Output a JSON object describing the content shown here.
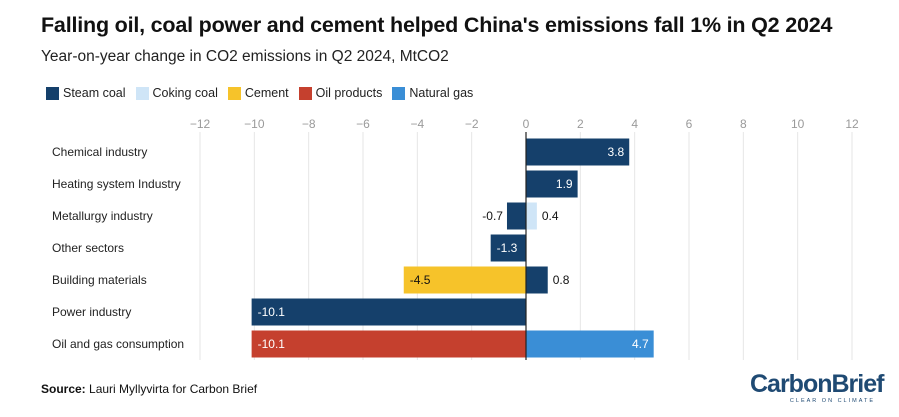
{
  "header": {
    "title": "Falling oil, coal power and cement helped China's emissions fall 1% in Q2 2024",
    "subtitle": "Year-on-year change in CO2 emissions in Q2 2024, MtCO2"
  },
  "footer": {
    "source_label": "Source:",
    "source_text": "Lauri Myllyvirta for Carbon Brief",
    "logo_text": "CarbonBrief",
    "logo_tagline": "CLEAR ON CLIMATE"
  },
  "colors": {
    "steam_coal": "#15406b",
    "coking_coal": "#cfe5f7",
    "cement": "#f6c32a",
    "oil_products": "#c5402e",
    "natural_gas": "#3a8ed6"
  },
  "chart_data": {
    "type": "bar",
    "orientation": "horizontal",
    "stacking": "diverging",
    "title": "Falling oil, coal power and cement helped China's emissions fall 1% in Q2 2024",
    "subtitle": "Year-on-year change in CO2 emissions in Q2 2024, MtCO2",
    "xlabel": "",
    "ylabel": "",
    "xlim": [
      -12,
      12
    ],
    "xticks": [
      -12,
      -10,
      -8,
      -6,
      -4,
      -2,
      0,
      2,
      4,
      6,
      8,
      10,
      12
    ],
    "xtick_labels": [
      "−12",
      "−10",
      "−8",
      "−6",
      "−4",
      "−2",
      "0",
      "2",
      "4",
      "6",
      "8",
      "10",
      "12"
    ],
    "grid": true,
    "legend_position": "top-left",
    "categories": [
      "Chemical industry",
      "Heating system Industry",
      "Metallurgy industry",
      "Other sectors",
      "Building materials",
      "Power industry",
      "Oil and gas consumption"
    ],
    "series": [
      {
        "name": "Steam coal",
        "key": "steam_coal",
        "values": [
          3.8,
          1.9,
          -0.7,
          -1.3,
          0.8,
          -10.1,
          null
        ]
      },
      {
        "name": "Coking coal",
        "key": "coking_coal",
        "values": [
          null,
          null,
          0.4,
          null,
          null,
          null,
          null
        ]
      },
      {
        "name": "Cement",
        "key": "cement",
        "values": [
          null,
          null,
          null,
          null,
          -4.5,
          null,
          null
        ]
      },
      {
        "name": "Oil products",
        "key": "oil_products",
        "values": [
          null,
          null,
          null,
          null,
          null,
          null,
          -10.1
        ]
      },
      {
        "name": "Natural gas",
        "key": "natural_gas",
        "values": [
          null,
          null,
          null,
          null,
          null,
          null,
          4.7
        ]
      }
    ],
    "bar_labels": [
      {
        "category_index": 0,
        "series": "steam_coal",
        "text": "3.8",
        "placement": "inside"
      },
      {
        "category_index": 1,
        "series": "steam_coal",
        "text": "1.9",
        "placement": "inside"
      },
      {
        "category_index": 2,
        "series": "steam_coal",
        "text": "-0.7",
        "placement": "outside"
      },
      {
        "category_index": 2,
        "series": "coking_coal",
        "text": "0.4",
        "placement": "outside"
      },
      {
        "category_index": 3,
        "series": "steam_coal",
        "text": "-1.3",
        "placement": "inside"
      },
      {
        "category_index": 4,
        "series": "cement",
        "text": "-4.5",
        "placement": "inside"
      },
      {
        "category_index": 4,
        "series": "steam_coal",
        "text": "0.8",
        "placement": "outside"
      },
      {
        "category_index": 5,
        "series": "steam_coal",
        "text": "-10.1",
        "placement": "inside"
      },
      {
        "category_index": 6,
        "series": "oil_products",
        "text": "-10.1",
        "placement": "inside"
      },
      {
        "category_index": 6,
        "series": "natural_gas",
        "text": "4.7",
        "placement": "inside"
      }
    ]
  }
}
